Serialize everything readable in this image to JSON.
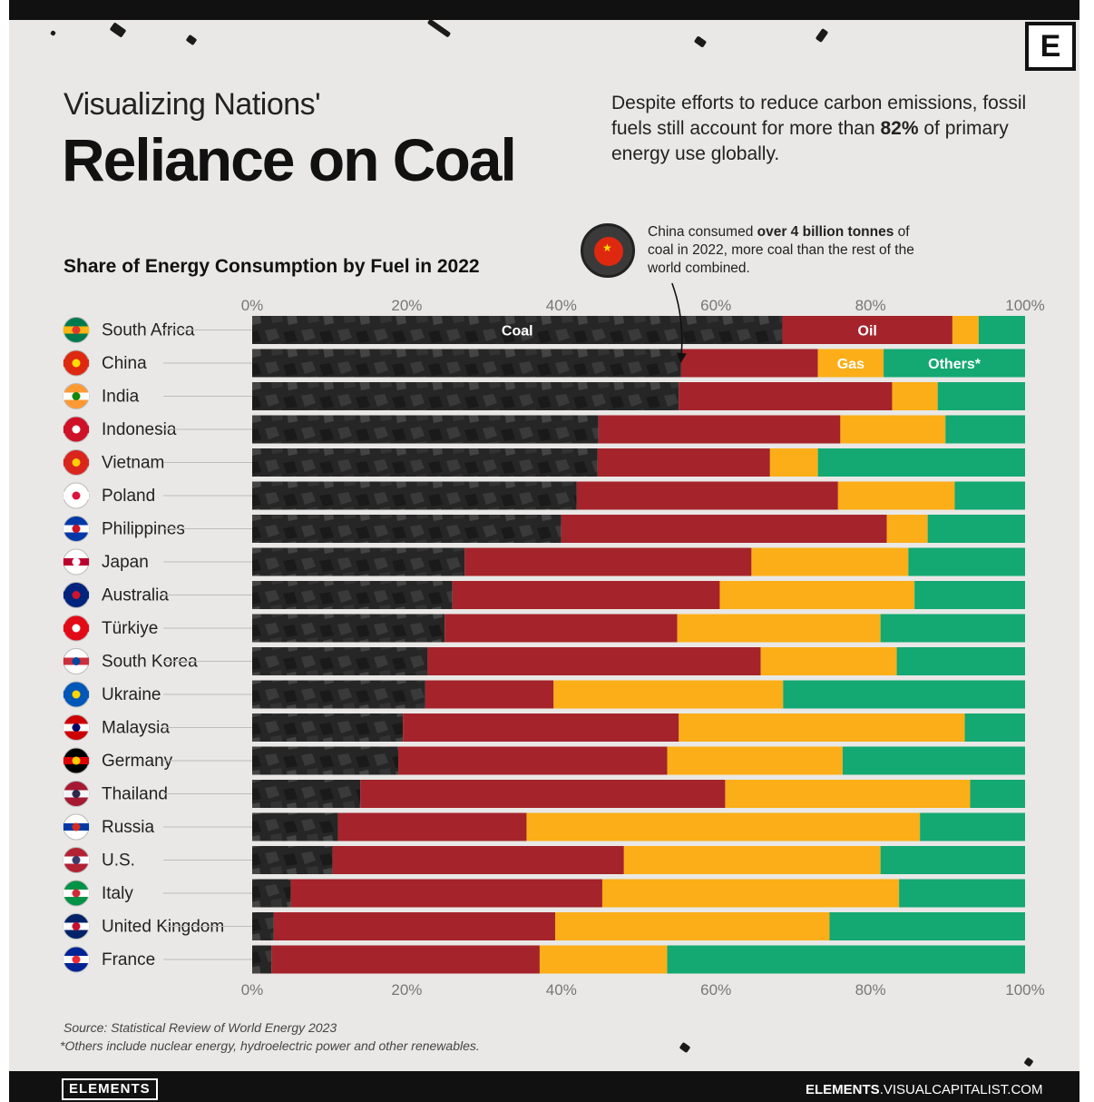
{
  "header": {
    "title_line1": "Visualizing Nations'",
    "title_line2": "Reliance on Coal",
    "dek_part1": "Despite efforts to reduce carbon emissions, fossil fuels still account for more than ",
    "dek_bold": "82%",
    "dek_part2": " of primary energy use globally.",
    "logo_letter": "E"
  },
  "annotation": {
    "text_part1": "China consumed ",
    "text_bold": "over 4 billion tonnes",
    "text_part2": " of coal in 2022, more coal than the rest of the world combined."
  },
  "footer": {
    "source": "Source: Statistical Review of World Energy 2023",
    "note": "*Others include nuclear energy, hydroelectric power and other renewables.",
    "brand_left": "ELEMENTS",
    "brand_right_bold": "ELEMENTS",
    "brand_right_rest": ".VISUALCAPITALIST.COM"
  },
  "colors": {
    "coal": "#262626",
    "oil": "#a5232b",
    "gas": "#fbae17",
    "others": "#14a872"
  },
  "chart_data": {
    "type": "bar",
    "orientation": "horizontal",
    "stacked": true,
    "title": "Share of Energy Consumption by Fuel in 2022",
    "xlim": [
      0,
      100
    ],
    "x_ticks": [
      "0%",
      "20%",
      "40%",
      "60%",
      "80%",
      "100%"
    ],
    "segment_labels": {
      "Coal": "Coal",
      "Oil": "Oil",
      "Gas": "Gas",
      "Others": "Others*"
    },
    "categories": [
      "South Africa",
      "China",
      "India",
      "Indonesia",
      "Vietnam",
      "Poland",
      "Philippines",
      "Japan",
      "Australia",
      "Türkiye",
      "South Korea",
      "Ukraine",
      "Malaysia",
      "Germany",
      "Thailand",
      "Russia",
      "U.S.",
      "Italy",
      "United Kingdom",
      "France"
    ],
    "series": [
      {
        "name": "Coal",
        "values": [
          68.6,
          55.5,
          55.2,
          44.8,
          44.7,
          42.0,
          40.0,
          27.5,
          25.9,
          24.9,
          22.7,
          22.4,
          19.5,
          18.9,
          14.0,
          11.1,
          10.4,
          5.0,
          2.8,
          2.5
        ]
      },
      {
        "name": "Oil",
        "values": [
          22.0,
          17.7,
          27.6,
          31.3,
          22.3,
          33.8,
          42.1,
          37.1,
          34.6,
          30.1,
          43.1,
          16.6,
          35.7,
          34.8,
          47.2,
          24.4,
          37.7,
          40.3,
          36.4,
          34.7
        ]
      },
      {
        "name": "Gas",
        "values": [
          3.4,
          8.5,
          5.9,
          13.6,
          6.2,
          15.1,
          5.3,
          20.3,
          25.2,
          26.3,
          17.6,
          29.7,
          37.0,
          22.7,
          31.7,
          50.9,
          33.2,
          38.4,
          35.5,
          16.5
        ]
      },
      {
        "name": "Others",
        "values": [
          6.0,
          18.3,
          11.3,
          10.3,
          26.8,
          9.1,
          12.6,
          15.1,
          14.3,
          18.7,
          16.6,
          31.3,
          7.8,
          23.6,
          7.1,
          13.6,
          18.7,
          16.3,
          25.3,
          46.3
        ]
      }
    ]
  },
  "flags": [
    {
      "c1": "#007a4d",
      "c2": "#ffb612",
      "c3": "#de3831"
    },
    {
      "c1": "#de2910",
      "c2": "#de2910",
      "c3": "#ffde00"
    },
    {
      "c1": "#ff9933",
      "c2": "#ffffff",
      "c3": "#138808"
    },
    {
      "c1": "#ce1126",
      "c2": "#ce1126",
      "c3": "#ffffff"
    },
    {
      "c1": "#da251d",
      "c2": "#da251d",
      "c3": "#ffcd00"
    },
    {
      "c1": "#ffffff",
      "c2": "#ffffff",
      "c3": "#dc143c"
    },
    {
      "c1": "#0038a8",
      "c2": "#ffffff",
      "c3": "#ce1126"
    },
    {
      "c1": "#ffffff",
      "c2": "#bc002d",
      "c3": "#ffffff"
    },
    {
      "c1": "#00247d",
      "c2": "#00247d",
      "c3": "#cf142b"
    },
    {
      "c1": "#e30a17",
      "c2": "#e30a17",
      "c3": "#ffffff"
    },
    {
      "c1": "#ffffff",
      "c2": "#cd2e3a",
      "c3": "#0047a0"
    },
    {
      "c1": "#0057b7",
      "c2": "#0057b7",
      "c3": "#ffd700"
    },
    {
      "c1": "#cc0001",
      "c2": "#ffffff",
      "c3": "#010066"
    },
    {
      "c1": "#000000",
      "c2": "#dd0000",
      "c3": "#ffce00"
    },
    {
      "c1": "#a51931",
      "c2": "#f4f5f8",
      "c3": "#2d2a4a"
    },
    {
      "c1": "#ffffff",
      "c2": "#0039a6",
      "c3": "#d52b1e"
    },
    {
      "c1": "#b22234",
      "c2": "#ffffff",
      "c3": "#3c3b6e"
    },
    {
      "c1": "#009246",
      "c2": "#ffffff",
      "c3": "#ce2b37"
    },
    {
      "c1": "#012169",
      "c2": "#ffffff",
      "c3": "#c8102e"
    },
    {
      "c1": "#002395",
      "c2": "#ffffff",
      "c3": "#ed2939"
    }
  ]
}
